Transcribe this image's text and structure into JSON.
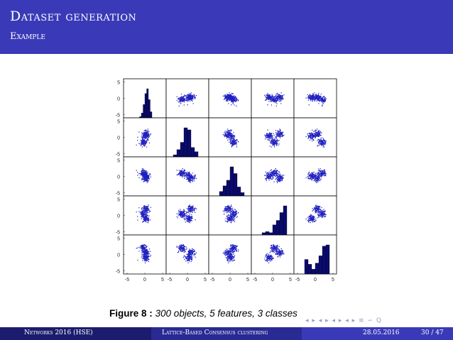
{
  "header": {
    "title": "Dataset generation",
    "subtitle": "Example"
  },
  "chart_data": {
    "type": "scatter",
    "description_type": "scatter-matrix",
    "features": 5,
    "axis_limits": [
      -6,
      6
    ],
    "tick_values": [
      -5,
      0,
      5
    ],
    "tick_labels": [
      "-5",
      "0",
      "5"
    ],
    "grid": false,
    "point_color": "#2020c0",
    "bar_color": "#0a0a6e",
    "histograms": [
      {
        "feature": 1,
        "bin_edges": [
          -1.5,
          -1,
          -0.5,
          0,
          0.5,
          1,
          1.5,
          2
        ],
        "counts": [
          2,
          8,
          22,
          40,
          48,
          30,
          10
        ]
      },
      {
        "feature": 2,
        "bin_edges": [
          -4,
          -3,
          -2,
          -1,
          0,
          1,
          2,
          3
        ],
        "counts": [
          4,
          14,
          28,
          56,
          52,
          18,
          10
        ]
      },
      {
        "feature": 3,
        "bin_edges": [
          -3,
          -2,
          -1,
          0,
          1,
          2,
          3,
          4
        ],
        "counts": [
          8,
          18,
          28,
          52,
          40,
          16,
          6
        ]
      },
      {
        "feature": 4,
        "bin_edges": [
          -3,
          -2,
          -1,
          0,
          1,
          2,
          3,
          4
        ],
        "counts": [
          4,
          6,
          4,
          18,
          26,
          40,
          52
        ]
      },
      {
        "feature": 5,
        "bin_edges": [
          -3,
          -2,
          -1,
          0,
          1,
          2,
          3,
          4
        ],
        "counts": [
          24,
          16,
          8,
          18,
          30,
          46,
          48
        ]
      }
    ],
    "class_centers": [
      [
        0.3,
        1.0,
        -0.5,
        2.0,
        0.5
      ],
      [
        -0.5,
        -1.5,
        1.0,
        0.5,
        2.0
      ],
      [
        0.2,
        0.5,
        0.0,
        -1.0,
        -1.0
      ]
    ],
    "spread": 0.55,
    "points_per_class": 100
  },
  "caption": {
    "label": "Figure 8 :",
    "text": "300 objects, 5 features, 3 classes"
  },
  "nav_symbols": "◂ ▸ ◂ ▸ ◂ ▸ ◂ ▸ ≡ ∽ Q",
  "footer": {
    "left": "Networks 2016 (HSE)",
    "center": "Lattice-Based Consensus clustering",
    "date": "28.05.2016",
    "page": "30 / 47"
  }
}
